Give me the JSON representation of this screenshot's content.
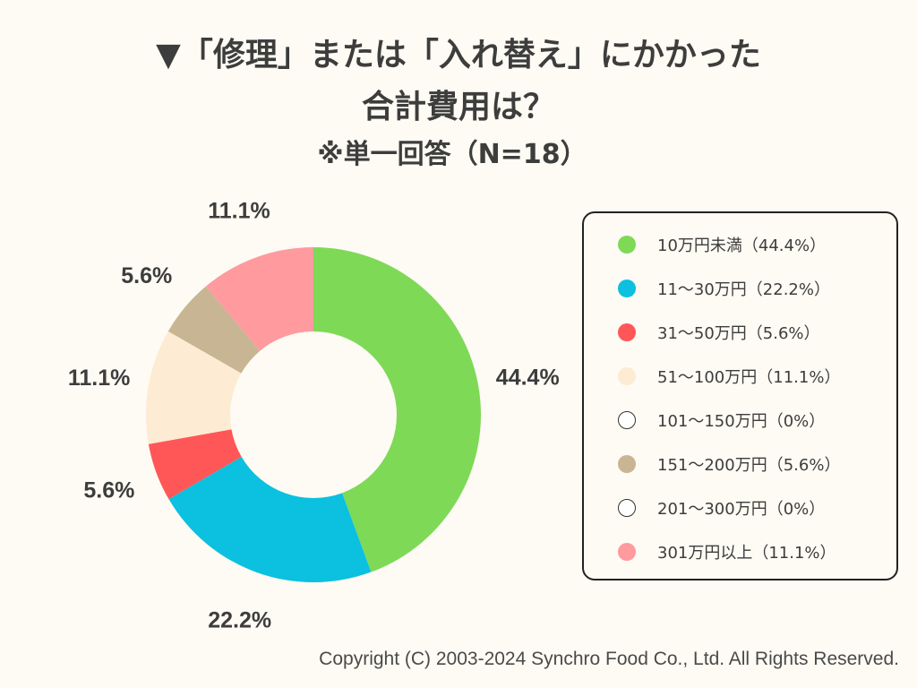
{
  "title": {
    "line1": "▼「修理」または「入れ替え」にかかった",
    "line2": "合計費用は？",
    "subtitle": "※単一回答（N=18）"
  },
  "chart_data": {
    "type": "donut",
    "title": "「修理」または「入れ替え」にかかった合計費用は？",
    "n": 18,
    "categories": [
      "10万円未満",
      "11〜30万円",
      "31〜50万円",
      "51〜100万円",
      "101〜150万円",
      "151〜200万円",
      "201〜300万円",
      "301万円以上"
    ],
    "values": [
      44.4,
      22.2,
      5.6,
      11.1,
      0,
      5.6,
      0,
      11.1
    ],
    "colors": [
      "#7ed957",
      "#0cc0df",
      "#ff5757",
      "#fdebd3",
      "#ffffff",
      "#c8b593",
      "#ffffff",
      "#ff9a9f"
    ],
    "data_labels": [
      "44.4%",
      "22.2%",
      "5.6%",
      "11.1%",
      "",
      "5.6%",
      "",
      "11.1%"
    ],
    "legend": {
      "position": "right",
      "entries": [
        "10万円未満（44.4%）",
        "11〜30万円（22.2%）",
        "31〜50万円（5.6%）",
        "51〜100万円（11.1%）",
        "101〜150万円（0%）",
        "151〜200万円（5.6%）",
        "201〜300万円（0%）",
        "301万円以上（11.1%）"
      ]
    }
  },
  "footer": {
    "copyright": "Copyright (C) 2003-2024  Synchro Food Co., Ltd. All Rights Reserved."
  }
}
